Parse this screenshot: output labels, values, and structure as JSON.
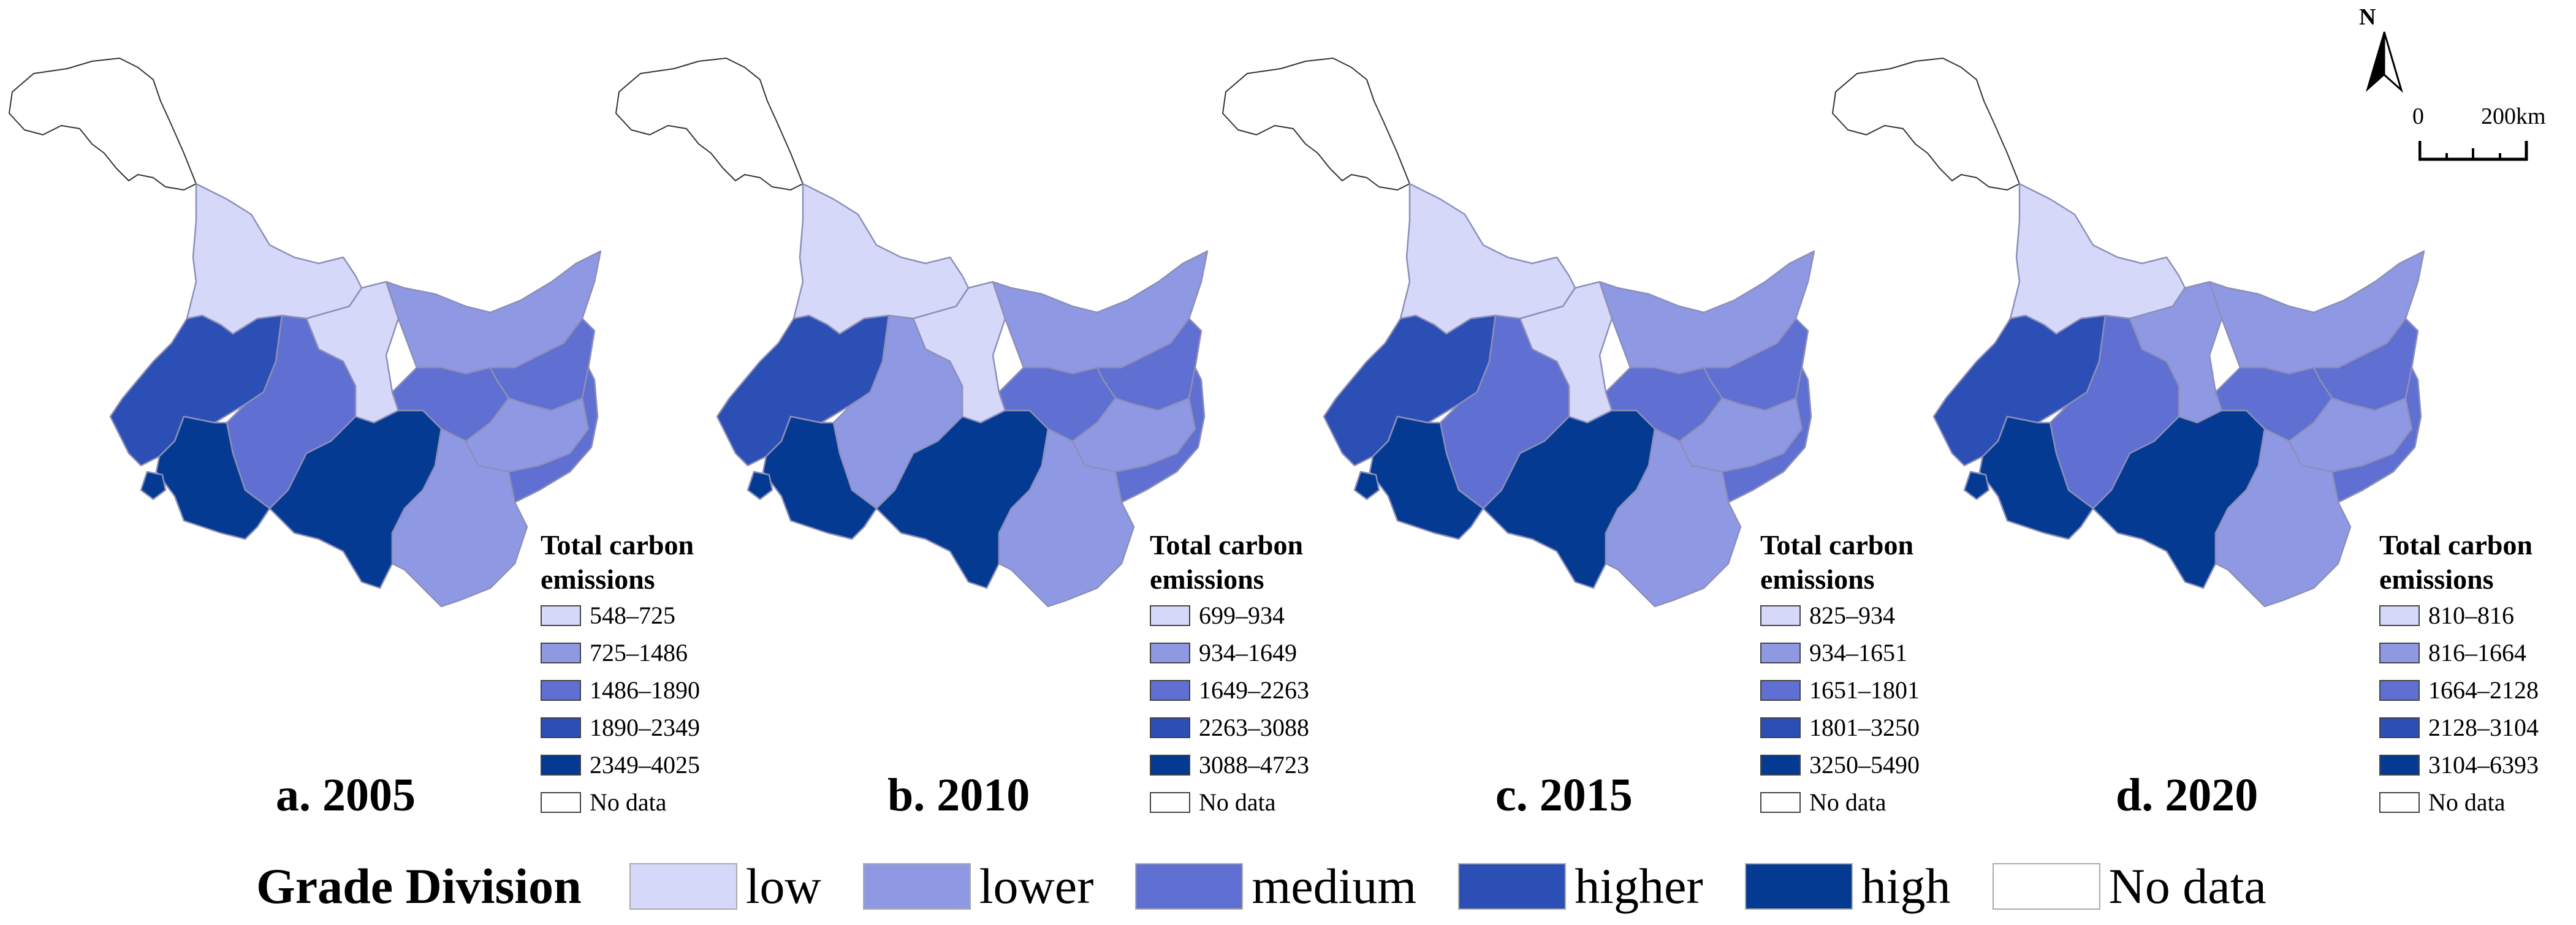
{
  "colors": {
    "low": "#d6d8fa",
    "lower": "#8f98e3",
    "medium": "#5f6fd2",
    "higher": "#2c4fb5",
    "high": "#053a93",
    "no_data": "#ffffff"
  },
  "panels": [
    {
      "label": "a. 2005",
      "legend_title_line1": "Total carbon",
      "legend_title_line2": "emissions",
      "classes": [
        "548–725",
        "725–1486",
        "1486–1890",
        "1890–2349",
        "2349–4025"
      ],
      "no_data_label": "No data",
      "region_grades": [
        "nodata",
        "low",
        "low",
        "higher",
        "medium",
        "high",
        "high",
        "lower",
        "lower",
        "medium",
        "medium",
        "lower",
        "medium",
        "high"
      ]
    },
    {
      "label": "b. 2010",
      "legend_title_line1": "Total carbon",
      "legend_title_line2": "emissions",
      "classes": [
        "699–934",
        "934–1649",
        "1649–2263",
        "2263–3088",
        "3088–4723"
      ],
      "no_data_label": "No data",
      "region_grades": [
        "nodata",
        "low",
        "low",
        "higher",
        "lower",
        "high",
        "high",
        "lower",
        "lower",
        "medium",
        "medium",
        "lower",
        "medium",
        "high"
      ]
    },
    {
      "label": "c. 2015",
      "legend_title_line1": "Total carbon",
      "legend_title_line2": "emissions",
      "classes": [
        "825–934",
        "934–1651",
        "1651–1801",
        "1801–3250",
        "3250–5490"
      ],
      "no_data_label": "No data",
      "region_grades": [
        "nodata",
        "low",
        "low",
        "higher",
        "medium",
        "high",
        "high",
        "lower",
        "lower",
        "medium",
        "medium",
        "lower",
        "medium",
        "high"
      ]
    },
    {
      "label": "d. 2020",
      "legend_title_line1": "Total carbon",
      "legend_title_line2": "emissions",
      "classes": [
        "810–816",
        "816–1664",
        "1664–2128",
        "2128–3104",
        "3104–6393"
      ],
      "no_data_label": "No data",
      "region_grades": [
        "nodata",
        "low",
        "lower",
        "higher",
        "medium",
        "high",
        "high",
        "lower",
        "lower",
        "medium",
        "medium",
        "lower",
        "medium",
        "high"
      ]
    }
  ],
  "grade_division": {
    "title": "Grade Division",
    "items": [
      "low",
      "lower",
      "medium",
      "higher",
      "high",
      "No data"
    ]
  },
  "north_arrow": {
    "label": "N"
  },
  "scale_bar": {
    "start_label": "0",
    "end_label": "200km"
  }
}
